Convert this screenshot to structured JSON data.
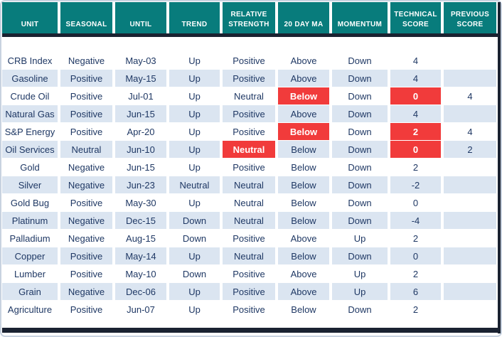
{
  "colors": {
    "header_background": "#087c7c",
    "header_text": "#ffffff",
    "row_alternate_background": "#dbe5f1",
    "body_text": "#1f3864",
    "negative_highlight": "#f13b3b",
    "highlight_text": "#ffffff",
    "thick_border": "#1a2231"
  },
  "chart_data": {
    "type": "table",
    "columns": [
      "UNIT",
      "SEASONAL",
      "UNTIL",
      "TREND",
      "RELATIVE STRENGTH",
      "20 DAY MA",
      "MOMENTUM",
      "TECHNICAL SCORE",
      "PREVIOUS SCORE"
    ],
    "rows": [
      [
        "CRB Index",
        "Negative",
        "May-03",
        "Up",
        "Positive",
        "Above",
        "Down",
        "4",
        ""
      ],
      [
        "Gasoline",
        "Positive",
        "May-15",
        "Up",
        "Positive",
        "Above",
        "Down",
        "4",
        ""
      ],
      [
        "Crude Oil",
        "Positive",
        "Jul-01",
        "Up",
        "Neutral",
        "Below",
        "Down",
        "0",
        "4"
      ],
      [
        "Natural Gas",
        "Positive",
        "Jun-15",
        "Up",
        "Positive",
        "Above",
        "Down",
        "4",
        ""
      ],
      [
        "S&P Energy",
        "Positive",
        "Apr-20",
        "Up",
        "Positive",
        "Below",
        "Down",
        "2",
        "4"
      ],
      [
        "Oil Services",
        "Neutral",
        "Jun-10",
        "Up",
        "Neutral",
        "Below",
        "Down",
        "0",
        "2"
      ],
      [
        "Gold",
        "Negative",
        "Jun-15",
        "Up",
        "Positive",
        "Below",
        "Down",
        "2",
        ""
      ],
      [
        "Silver",
        "Negative",
        "Jun-23",
        "Neutral",
        "Neutral",
        "Below",
        "Down",
        "-2",
        ""
      ],
      [
        "Gold Bug",
        "Positive",
        "May-30",
        "Up",
        "Neutral",
        "Below",
        "Down",
        "0",
        ""
      ],
      [
        "Platinum",
        "Negative",
        "Dec-15",
        "Down",
        "Neutral",
        "Below",
        "Down",
        "-4",
        ""
      ],
      [
        "Palladium",
        "Negative",
        "Aug-15",
        "Down",
        "Positive",
        "Above",
        "Up",
        "2",
        ""
      ],
      [
        "Copper",
        "Positive",
        "May-14",
        "Up",
        "Neutral",
        "Below",
        "Down",
        "0",
        ""
      ],
      [
        "Lumber",
        "Positive",
        "May-10",
        "Down",
        "Positive",
        "Above",
        "Up",
        "2",
        ""
      ],
      [
        "Grain",
        "Negative",
        "Dec-06",
        "Up",
        "Positive",
        "Above",
        "Up",
        "6",
        ""
      ],
      [
        "Agriculture",
        "Positive",
        "Jun-07",
        "Up",
        "Positive",
        "Below",
        "Down",
        "2",
        ""
      ]
    ],
    "red_cells": [
      [
        2,
        5
      ],
      [
        2,
        7
      ],
      [
        4,
        5
      ],
      [
        4,
        7
      ],
      [
        5,
        4
      ],
      [
        5,
        7
      ]
    ],
    "layout_hints": {
      "alternate_row_shading": "even data rows shaded light blue starting with second row",
      "header_position": "top",
      "grid": "off"
    }
  }
}
